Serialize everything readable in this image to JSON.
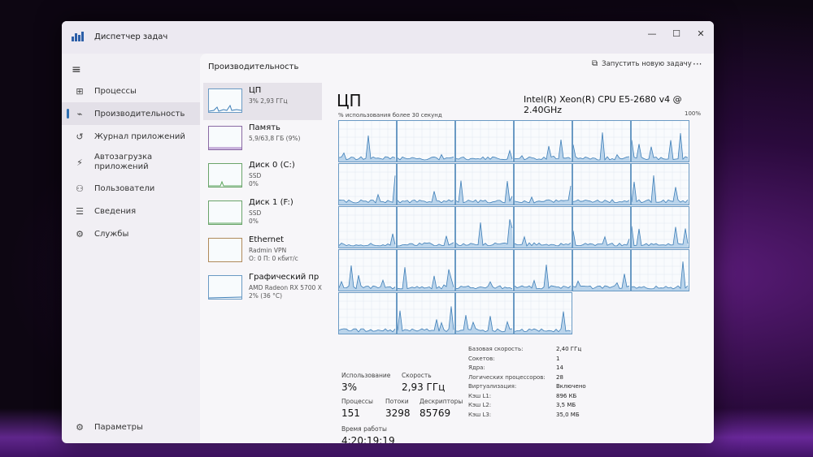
{
  "window": {
    "title": "Диспетчер задач",
    "controls": [
      "—",
      "☐",
      "✕"
    ]
  },
  "sidebar": {
    "items": [
      {
        "label": "Процессы",
        "icon": "processes-icon",
        "glyph": "⊞"
      },
      {
        "label": "Производительность",
        "icon": "performance-icon",
        "glyph": "⌁",
        "active": true
      },
      {
        "label": "Журнал приложений",
        "icon": "app-history-icon",
        "glyph": "↺"
      },
      {
        "label": "Автозагрузка приложений",
        "icon": "startup-icon",
        "glyph": "⚡"
      },
      {
        "label": "Пользователи",
        "icon": "users-icon",
        "glyph": "👥"
      },
      {
        "label": "Сведения",
        "icon": "details-icon",
        "glyph": "☰"
      },
      {
        "label": "Службы",
        "icon": "services-icon",
        "glyph": "⚙"
      }
    ],
    "settings_label": "Параметры"
  },
  "header": {
    "title": "Производительность",
    "run_task": "Запустить новую задачу",
    "more": "···"
  },
  "devices": [
    {
      "name": "ЦП",
      "sub": "3% 2,93 ГГц",
      "sub2": "",
      "kind": "cpu",
      "active": true
    },
    {
      "name": "Память",
      "sub": "5,9/63,8 ГБ (9%)",
      "sub2": "",
      "kind": "mem"
    },
    {
      "name": "Диск 0 (C:)",
      "sub": "SSD",
      "sub2": "0%",
      "kind": "disk"
    },
    {
      "name": "Диск 1 (F:)",
      "sub": "SSD",
      "sub2": "0%",
      "kind": "disk"
    },
    {
      "name": "Ethernet",
      "sub": "Radmin VPN",
      "sub2": "О: 0 П: 0 кбит/с",
      "kind": "net"
    },
    {
      "name": "Графический пр",
      "sub": "AMD Radeon RX 5700 X",
      "sub2": "2% (36 °C)",
      "kind": "gpu"
    }
  ],
  "cpu": {
    "title": "ЦП",
    "model": "Intel(R) Xeon(R) CPU E5-2680 v4 @ 2.40GHz",
    "graph_caption": "% использования более 30 секунд",
    "graph_max": "100%",
    "logical_processors": 28,
    "stats": {
      "usage_label": "Использование",
      "usage": "3%",
      "speed_label": "Скорость",
      "speed": "2,93 ГГц",
      "processes_label": "Процессы",
      "processes": "151",
      "threads_label": "Потоки",
      "threads": "3298",
      "handles_label": "Дескрипторы",
      "handles": "85769",
      "uptime_label": "Время работы",
      "uptime": "4:20:19:19"
    },
    "properties": [
      {
        "label": "Базовая скорость:",
        "value": "2,40 ГГц"
      },
      {
        "label": "Сокетов:",
        "value": "1"
      },
      {
        "label": "Ядра:",
        "value": "14"
      },
      {
        "label": "Логических процессоров:",
        "value": "28"
      },
      {
        "label": "Виртуализация:",
        "value": "Включено"
      },
      {
        "label": "Кэш L1:",
        "value": "896 КБ"
      },
      {
        "label": "Кэш L2:",
        "value": "3,5 МБ"
      },
      {
        "label": "Кэш L3:",
        "value": "35,0 МБ"
      }
    ]
  },
  "colors": {
    "accent": "#2f6fb0",
    "graph_line": "#3f7fb8",
    "graph_fill": "#9fc3e3"
  }
}
